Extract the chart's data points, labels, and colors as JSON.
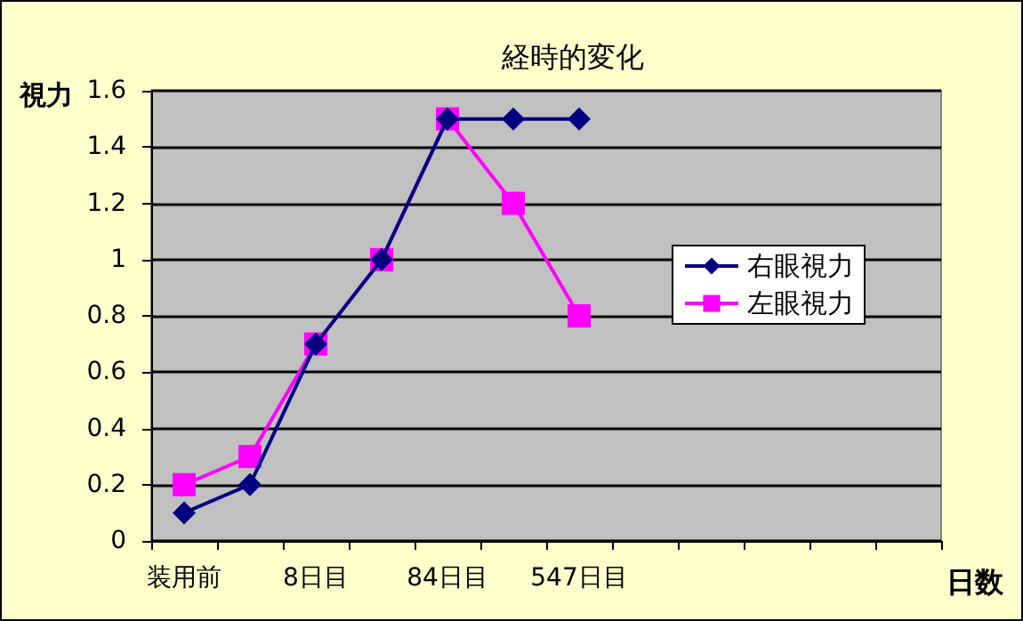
{
  "chart_data": {
    "type": "line",
    "title": "経時的変化",
    "ylabel": "視力",
    "xlabel": "日数",
    "categories": [
      "装用前",
      null,
      "8日目",
      null,
      "84日目",
      null,
      "547日目",
      null,
      null,
      null,
      null,
      null
    ],
    "series": [
      {
        "name": "右眼視力",
        "color": "#000080",
        "marker": "diamond",
        "values": [
          0.1,
          0.2,
          0.7,
          1.0,
          1.5,
          1.5,
          1.5,
          null,
          null,
          null,
          null,
          null
        ]
      },
      {
        "name": "左眼視力",
        "color": "#ff00ff",
        "marker": "square",
        "values": [
          0.2,
          0.3,
          0.7,
          1.0,
          1.5,
          1.2,
          0.8,
          null,
          null,
          null,
          null,
          null
        ]
      }
    ],
    "ylim": [
      0,
      1.6
    ],
    "yticks": [
      0,
      0.2,
      0.4,
      0.6,
      0.8,
      1,
      1.2,
      1.4,
      1.6
    ],
    "grid": "y",
    "legend": "right",
    "line_style": "solid"
  }
}
